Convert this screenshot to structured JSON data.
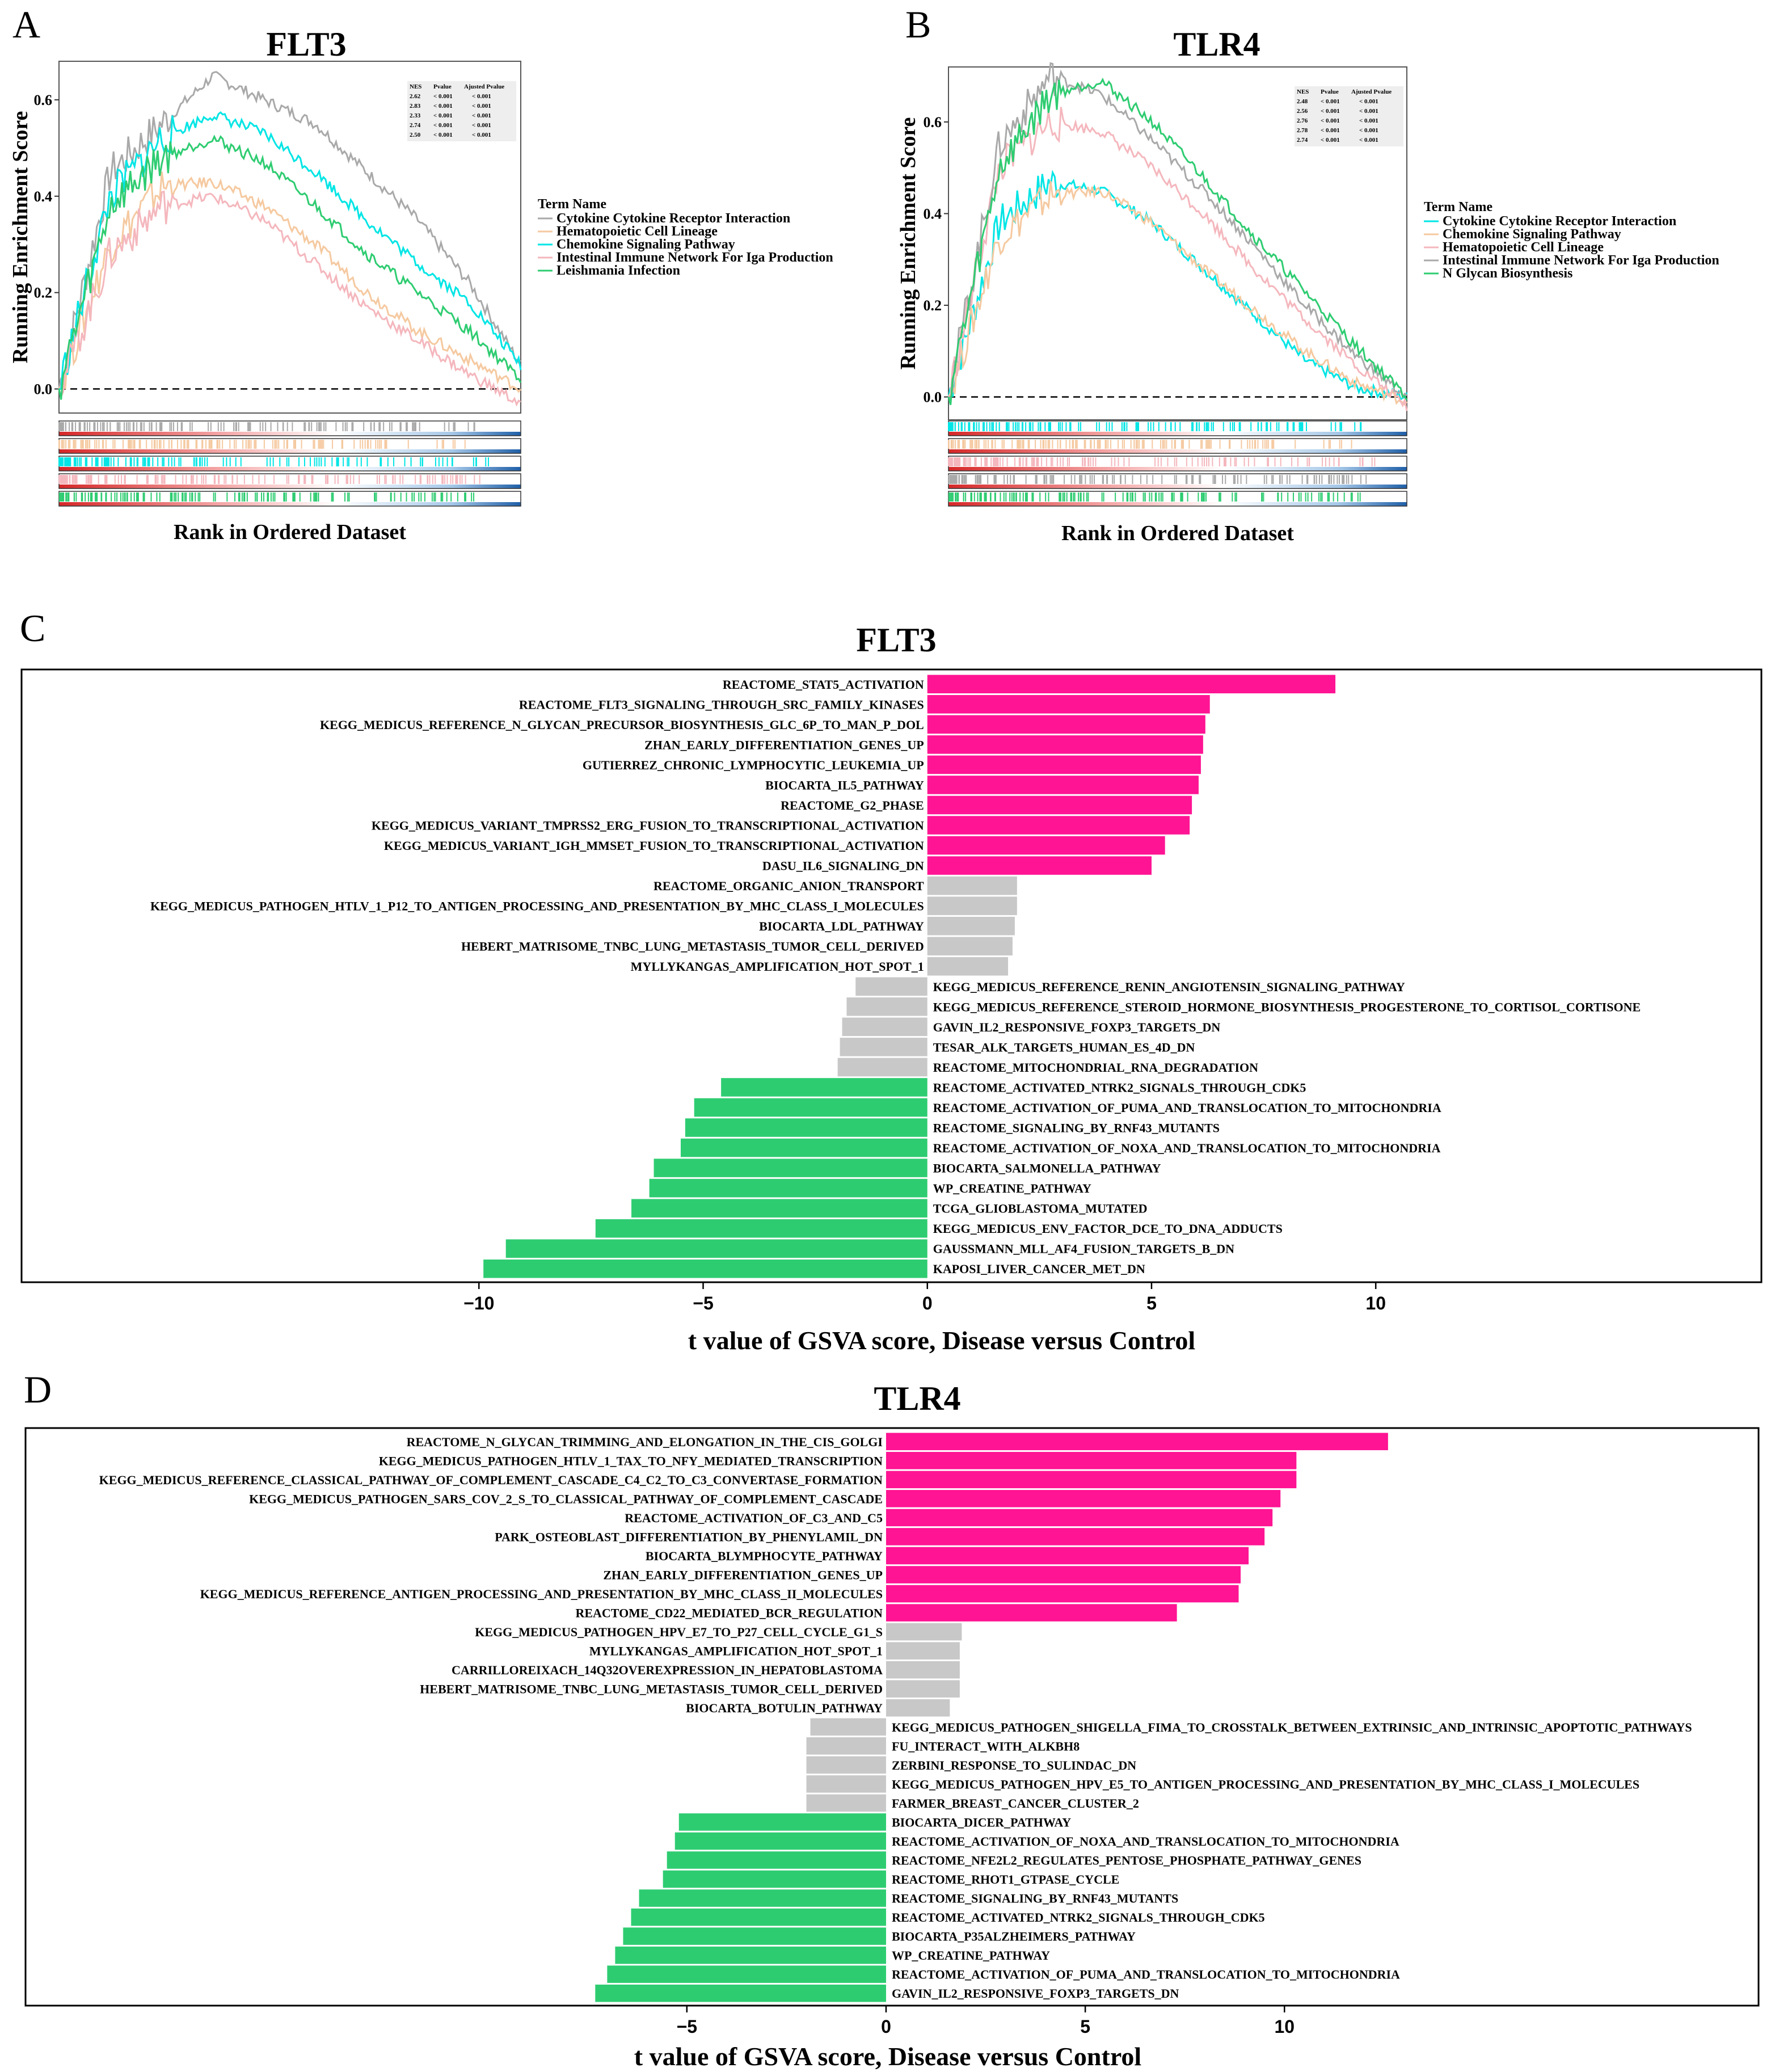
{
  "chart_data": [
    {
      "panel": "A",
      "type": "line",
      "title": "FLT3",
      "xlabel": "Rank in Ordered Dataset",
      "ylabel": "Running Enrichment Score",
      "y_ticks": [
        "0.0",
        "0.2",
        "0.4",
        "0.6"
      ],
      "ylim": [
        -0.05,
        0.68
      ],
      "legend_title": "Term Name",
      "table_headers": [
        "NES",
        "Pvalue",
        "Ajusted Pvalue"
      ],
      "series": [
        {
          "name": "Cytokine Cytokine Receptor Interaction",
          "color": "#a9a9a9",
          "nes": "2.62",
          "pvalue": "< 0.001",
          "adj_pvalue": "< 0.001",
          "y": [
            0,
            0.45,
            0.55,
            0.65,
            0.6,
            0.55,
            0.45,
            0.35,
            0.22,
            0.05
          ]
        },
        {
          "name": "Hematopoietic Cell Lineage",
          "color": "#f5c9a0",
          "nes": "2.83",
          "pvalue": "< 0.001",
          "adj_pvalue": "< 0.001",
          "y": [
            0,
            0.3,
            0.42,
            0.43,
            0.38,
            0.3,
            0.2,
            0.12,
            0.06,
            0.0
          ]
        },
        {
          "name": "Chemokine Signaling Pathway",
          "color": "#00e5e5",
          "nes": "2.33",
          "pvalue": "< 0.001",
          "adj_pvalue": "< 0.001",
          "y": [
            0,
            0.4,
            0.52,
            0.57,
            0.53,
            0.45,
            0.35,
            0.26,
            0.18,
            0.05
          ]
        },
        {
          "name": "Intestinal Immune Network For Iga Production",
          "color": "#f4b7bd",
          "nes": "2.74",
          "pvalue": "< 0.001",
          "adj_pvalue": "< 0.001",
          "y": [
            0,
            0.28,
            0.38,
            0.4,
            0.35,
            0.26,
            0.17,
            0.1,
            0.03,
            -0.03
          ]
        },
        {
          "name": "Leishmania Infection",
          "color": "#2ecc71",
          "nes": "2.50",
          "pvalue": "< 0.001",
          "adj_pvalue": "< 0.001",
          "y": [
            0,
            0.38,
            0.48,
            0.52,
            0.47,
            0.38,
            0.28,
            0.2,
            0.12,
            0.02
          ]
        }
      ]
    },
    {
      "panel": "B",
      "type": "line",
      "title": "TLR4",
      "xlabel": "Rank in Ordered Dataset",
      "ylabel": "Running Enrichment Score",
      "y_ticks": [
        "0.0",
        "0.2",
        "0.4",
        "0.6"
      ],
      "ylim": [
        -0.05,
        0.72
      ],
      "legend_title": "Term Name",
      "table_headers": [
        "NES",
        "Pvalue",
        "Ajusted Pvalue"
      ],
      "series": [
        {
          "name": "Cytokine Cytokine Receptor Interaction",
          "color": "#00e5e5",
          "nes": "2.48",
          "pvalue": "< 0.001",
          "adj_pvalue": "< 0.001",
          "y": [
            0,
            0.38,
            0.47,
            0.45,
            0.38,
            0.28,
            0.18,
            0.08,
            0.02,
            0.0
          ]
        },
        {
          "name": "Chemokine Signaling Pathway",
          "color": "#f5c9a0",
          "nes": "2.56",
          "pvalue": "< 0.001",
          "adj_pvalue": "< 0.001",
          "y": [
            0,
            0.35,
            0.44,
            0.45,
            0.38,
            0.28,
            0.19,
            0.1,
            0.03,
            -0.01
          ]
        },
        {
          "name": "Hematopoietic Cell Lineage",
          "color": "#f4b7bd",
          "nes": "2.76",
          "pvalue": "< 0.001",
          "adj_pvalue": "< 0.001",
          "y": [
            0,
            0.5,
            0.6,
            0.58,
            0.5,
            0.4,
            0.28,
            0.17,
            0.07,
            -0.02
          ]
        },
        {
          "name": "Intestinal Immune Network For Iga Production",
          "color": "#a9a9a9",
          "nes": "2.78",
          "pvalue": "< 0.001",
          "adj_pvalue": "< 0.001",
          "y": [
            0,
            0.55,
            0.7,
            0.66,
            0.56,
            0.45,
            0.33,
            0.2,
            0.09,
            0.0
          ]
        },
        {
          "name": "N Glycan Biosynthesis",
          "color": "#2ecc71",
          "nes": "2.74",
          "pvalue": "< 0.001",
          "adj_pvalue": "< 0.001",
          "y": [
            0,
            0.5,
            0.66,
            0.69,
            0.6,
            0.48,
            0.35,
            0.23,
            0.11,
            0.0
          ]
        }
      ]
    },
    {
      "panel": "C",
      "type": "bar",
      "orientation": "horizontal",
      "title": "FLT3",
      "xlabel": "t value of GSVA score, Disease versus Control",
      "xlim": [
        -20.2,
        18.6
      ],
      "xticks": [
        -10,
        -5,
        0,
        5,
        10
      ],
      "xtick_labels": [
        "−10",
        "−5",
        "0",
        "5",
        "10"
      ],
      "colors": {
        "up": "#ff1493",
        "ns": "#c8c8c8",
        "down": "#2ecc71"
      },
      "bars": [
        {
          "label": "REACTOME_STAT5_ACTIVATION",
          "value": 9.1,
          "group": "up"
        },
        {
          "label": "REACTOME_FLT3_SIGNALING_THROUGH_SRC_FAMILY_KINASES",
          "value": 6.3,
          "group": "up"
        },
        {
          "label": "KEGG_MEDICUS_REFERENCE_N_GLYCAN_PRECURSOR_BIOSYNTHESIS_GLC_6P_TO_MAN_P_DOL",
          "value": 6.2,
          "group": "up"
        },
        {
          "label": "ZHAN_EARLY_DIFFERENTIATION_GENES_UP",
          "value": 6.15,
          "group": "up"
        },
        {
          "label": "GUTIERREZ_CHRONIC_LYMPHOCYTIC_LEUKEMIA_UP",
          "value": 6.1,
          "group": "up"
        },
        {
          "label": "BIOCARTA_IL5_PATHWAY",
          "value": 6.05,
          "group": "up"
        },
        {
          "label": "REACTOME_G2_PHASE",
          "value": 5.9,
          "group": "up"
        },
        {
          "label": "KEGG_MEDICUS_VARIANT_TMPRSS2_ERG_FUSION_TO_TRANSCRIPTIONAL_ACTIVATION",
          "value": 5.85,
          "group": "up"
        },
        {
          "label": "KEGG_MEDICUS_VARIANT_IGH_MMSET_FUSION_TO_TRANSCRIPTIONAL_ACTIVATION",
          "value": 5.3,
          "group": "up"
        },
        {
          "label": "DASU_IL6_SIGNALING_DN",
          "value": 5.0,
          "group": "up"
        },
        {
          "label": "REACTOME_ORGANIC_ANION_TRANSPORT",
          "value": 2.0,
          "group": "ns"
        },
        {
          "label": "KEGG_MEDICUS_PATHOGEN_HTLV_1_P12_TO_ANTIGEN_PROCESSING_AND_PRESENTATION_BY_MHC_CLASS_I_MOLECULES",
          "value": 2.0,
          "group": "ns"
        },
        {
          "label": "BIOCARTA_LDL_PATHWAY",
          "value": 1.95,
          "group": "ns"
        },
        {
          "label": "HEBERT_MATRISOME_TNBC_LUNG_METASTASIS_TUMOR_CELL_DERIVED",
          "value": 1.9,
          "group": "ns"
        },
        {
          "label": "MYLLYKANGAS_AMPLIFICATION_HOT_SPOT_1",
          "value": 1.8,
          "group": "ns"
        },
        {
          "label": "KEGG_MEDICUS_REFERENCE_RENIN_ANGIOTENSIN_SIGNALING_PATHWAY",
          "value": -1.6,
          "group": "ns"
        },
        {
          "label": "KEGG_MEDICUS_REFERENCE_STEROID_HORMONE_BIOSYNTHESIS_PROGESTERONE_TO_CORTISOL_CORTISONE",
          "value": -1.8,
          "group": "ns"
        },
        {
          "label": "GAVIN_IL2_RESPONSIVE_FOXP3_TARGETS_DN",
          "value": -1.9,
          "group": "ns"
        },
        {
          "label": "TESAR_ALK_TARGETS_HUMAN_ES_4D_DN",
          "value": -1.95,
          "group": "ns"
        },
        {
          "label": "REACTOME_MITOCHONDRIAL_RNA_DEGRADATION",
          "value": -2.0,
          "group": "ns"
        },
        {
          "label": "REACTOME_ACTIVATED_NTRK2_SIGNALS_THROUGH_CDK5",
          "value": -4.6,
          "group": "down"
        },
        {
          "label": "REACTOME_ACTIVATION_OF_PUMA_AND_TRANSLOCATION_TO_MITOCHONDRIA",
          "value": -5.2,
          "group": "down"
        },
        {
          "label": "REACTOME_SIGNALING_BY_RNF43_MUTANTS",
          "value": -5.4,
          "group": "down"
        },
        {
          "label": "REACTOME_ACTIVATION_OF_NOXA_AND_TRANSLOCATION_TO_MITOCHONDRIA",
          "value": -5.5,
          "group": "down"
        },
        {
          "label": "BIOCARTA_SALMONELLA_PATHWAY",
          "value": -6.1,
          "group": "down"
        },
        {
          "label": "WP_CREATINE_PATHWAY",
          "value": -6.2,
          "group": "down"
        },
        {
          "label": "TCGA_GLIOBLASTOMA_MUTATED",
          "value": -6.6,
          "group": "down"
        },
        {
          "label": "KEGG_MEDICUS_ENV_FACTOR_DCE_TO_DNA_ADDUCTS",
          "value": -7.4,
          "group": "down"
        },
        {
          "label": "GAUSSMANN_MLL_AF4_FUSION_TARGETS_B_DN",
          "value": -9.4,
          "group": "down"
        },
        {
          "label": "KAPOSI_LIVER_CANCER_MET_DN",
          "value": -9.9,
          "group": "down"
        }
      ]
    },
    {
      "panel": "D",
      "type": "bar",
      "orientation": "horizontal",
      "title": "TLR4",
      "xlabel": "t value of GSVA score, Disease versus Control",
      "xlim": [
        -21.6,
        21.9
      ],
      "xticks": [
        -5,
        0,
        5,
        10
      ],
      "xtick_labels": [
        "−5",
        "0",
        "5",
        "10"
      ],
      "colors": {
        "up": "#ff1493",
        "ns": "#c8c8c8",
        "down": "#2ecc71"
      },
      "bars": [
        {
          "label": "REACTOME_N_GLYCAN_TRIMMING_AND_ELONGATION_IN_THE_CIS_GOLGI",
          "value": 12.6,
          "group": "up"
        },
        {
          "label": "KEGG_MEDICUS_PATHOGEN_HTLV_1_TAX_TO_NFY_MEDIATED_TRANSCRIPTION",
          "value": 10.3,
          "group": "up"
        },
        {
          "label": "KEGG_MEDICUS_REFERENCE_CLASSICAL_PATHWAY_OF_COMPLEMENT_CASCADE_C4_C2_TO_C3_CONVERTASE_FORMATION",
          "value": 10.3,
          "group": "up"
        },
        {
          "label": "KEGG_MEDICUS_PATHOGEN_SARS_COV_2_S_TO_CLASSICAL_PATHWAY_OF_COMPLEMENT_CASCADE",
          "value": 9.9,
          "group": "up"
        },
        {
          "label": "REACTOME_ACTIVATION_OF_C3_AND_C5",
          "value": 9.7,
          "group": "up"
        },
        {
          "label": "PARK_OSTEOBLAST_DIFFERENTIATION_BY_PHENYLAMIL_DN",
          "value": 9.5,
          "group": "up"
        },
        {
          "label": "BIOCARTA_BLYMPHOCYTE_PATHWAY",
          "value": 9.1,
          "group": "up"
        },
        {
          "label": "ZHAN_EARLY_DIFFERENTIATION_GENES_UP",
          "value": 8.9,
          "group": "up"
        },
        {
          "label": "KEGG_MEDICUS_REFERENCE_ANTIGEN_PROCESSING_AND_PRESENTATION_BY_MHC_CLASS_II_MOLECULES",
          "value": 8.85,
          "group": "up"
        },
        {
          "label": "REACTOME_CD22_MEDIATED_BCR_REGULATION",
          "value": 7.3,
          "group": "up"
        },
        {
          "label": "KEGG_MEDICUS_PATHOGEN_HPV_E7_TO_P27_CELL_CYCLE_G1_S",
          "value": 1.9,
          "group": "ns"
        },
        {
          "label": "MYLLYKANGAS_AMPLIFICATION_HOT_SPOT_1",
          "value": 1.85,
          "group": "ns"
        },
        {
          "label": "CARRILLOREIXACH_14Q32OVEREXPRESSION_IN_HEPATOBLASTOMA",
          "value": 1.85,
          "group": "ns"
        },
        {
          "label": "HEBERT_MATRISOME_TNBC_LUNG_METASTASIS_TUMOR_CELL_DERIVED",
          "value": 1.85,
          "group": "ns"
        },
        {
          "label": "BIOCARTA_BOTULIN_PATHWAY",
          "value": 1.6,
          "group": "ns"
        },
        {
          "label": "KEGG_MEDICUS_PATHOGEN_SHIGELLA_FIMA_TO_CROSSTALK_BETWEEN_EXTRINSIC_AND_INTRINSIC_APOPTOTIC_PATHWAYS",
          "value": -1.9,
          "group": "ns"
        },
        {
          "label": "FU_INTERACT_WITH_ALKBH8",
          "value": -2.0,
          "group": "ns"
        },
        {
          "label": "ZERBINI_RESPONSE_TO_SULINDAC_DN",
          "value": -2.0,
          "group": "ns"
        },
        {
          "label": "KEGG_MEDICUS_PATHOGEN_HPV_E5_TO_ANTIGEN_PROCESSING_AND_PRESENTATION_BY_MHC_CLASS_I_MOLECULES",
          "value": -2.0,
          "group": "ns"
        },
        {
          "label": "FARMER_BREAST_CANCER_CLUSTER_2",
          "value": -2.0,
          "group": "ns"
        },
        {
          "label": "BIOCARTA_DICER_PATHWAY",
          "value": -5.2,
          "group": "down"
        },
        {
          "label": "REACTOME_ACTIVATION_OF_NOXA_AND_TRANSLOCATION_TO_MITOCHONDRIA",
          "value": -5.3,
          "group": "down"
        },
        {
          "label": "REACTOME_NFE2L2_REGULATES_PENTOSE_PHOSPHATE_PATHWAY_GENES",
          "value": -5.5,
          "group": "down"
        },
        {
          "label": "REACTOME_RHOT1_GTPASE_CYCLE",
          "value": -5.6,
          "group": "down"
        },
        {
          "label": "REACTOME_SIGNALING_BY_RNF43_MUTANTS",
          "value": -6.2,
          "group": "down"
        },
        {
          "label": "REACTOME_ACTIVATED_NTRK2_SIGNALS_THROUGH_CDK5",
          "value": -6.4,
          "group": "down"
        },
        {
          "label": "BIOCARTA_P35ALZHEIMERS_PATHWAY",
          "value": -6.6,
          "group": "down"
        },
        {
          "label": "WP_CREATINE_PATHWAY",
          "value": -6.8,
          "group": "down"
        },
        {
          "label": "REACTOME_ACTIVATION_OF_PUMA_AND_TRANSLOCATION_TO_MITOCHONDRIA",
          "value": -7.0,
          "group": "down"
        },
        {
          "label": "GAVIN_IL2_RESPONSIVE_FOXP3_TARGETS_DN",
          "value": -7.3,
          "group": "down"
        }
      ]
    }
  ]
}
